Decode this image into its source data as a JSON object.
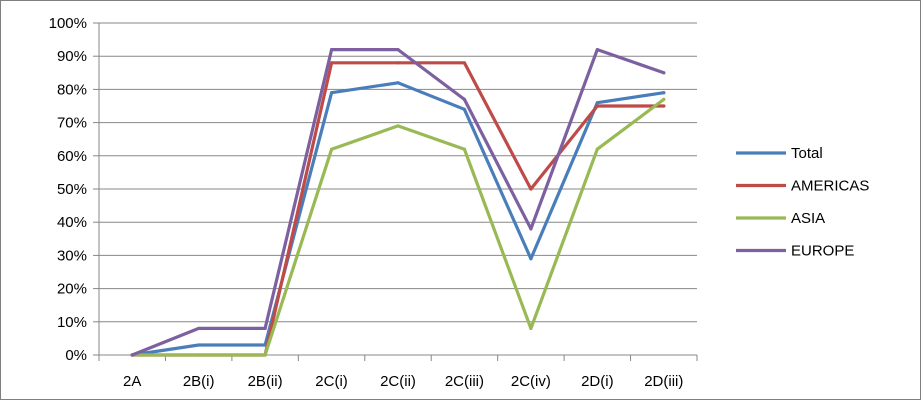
{
  "chart_data": {
    "type": "line",
    "title": "",
    "xlabel": "",
    "ylabel": "",
    "categories": [
      "2A",
      "2B(i)",
      "2B(ii)",
      "2C(i)",
      "2C(ii)",
      "2C(iii)",
      "2C(iv)",
      "2D(i)",
      "2D(iii)"
    ],
    "ylim": [
      0,
      100
    ],
    "y_ticks": [
      "0%",
      "10%",
      "20%",
      "30%",
      "40%",
      "50%",
      "60%",
      "70%",
      "80%",
      "90%",
      "100%"
    ],
    "grid": "horizontal",
    "legend_position": "right",
    "series": [
      {
        "name": "Total",
        "color": "#4a7ebb",
        "values": [
          0,
          3,
          3,
          79,
          82,
          74,
          29,
          76,
          79
        ]
      },
      {
        "name": "AMERICAS",
        "color": "#be4b48",
        "values": [
          0,
          0,
          0,
          88,
          88,
          88,
          50,
          75,
          75
        ]
      },
      {
        "name": "ASIA",
        "color": "#98b954",
        "values": [
          0,
          0,
          0,
          62,
          69,
          62,
          8,
          62,
          77
        ]
      },
      {
        "name": "EUROPE",
        "color": "#7d60a0",
        "values": [
          0,
          8,
          8,
          92,
          92,
          77,
          38,
          92,
          85
        ]
      }
    ]
  }
}
